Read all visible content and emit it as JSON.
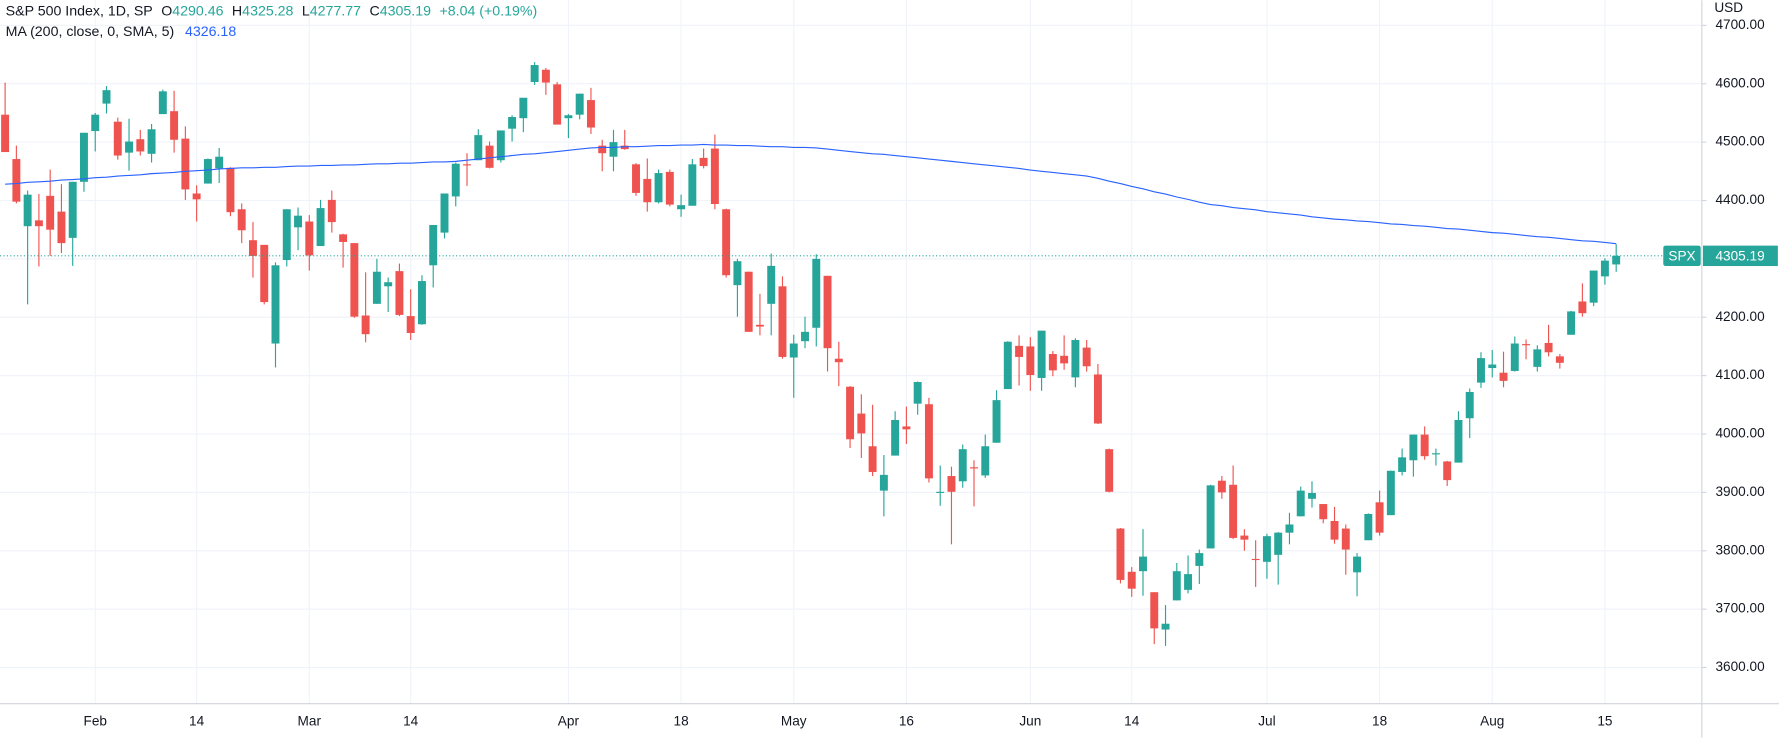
{
  "chart_data": {
    "type": "candlestick",
    "title": "S&P 500 Index, 1D, SP",
    "ohlc_keys": [
      "O",
      "H",
      "L",
      "C"
    ],
    "change": "+8.04 (+0.19%)",
    "currency": "USD",
    "symbol": "SPX",
    "categories": [
      null,
      null,
      null,
      null,
      null,
      null,
      null,
      null,
      "Feb",
      null,
      null,
      null,
      null,
      null,
      null,
      null,
      null,
      "14",
      null,
      null,
      null,
      null,
      null,
      null,
      null,
      null,
      null,
      "Mar",
      null,
      null,
      null,
      null,
      null,
      null,
      null,
      null,
      "14",
      null,
      null,
      null,
      null,
      null,
      null,
      null,
      null,
      null,
      null,
      null,
      null,
      null,
      "Apr",
      null,
      null,
      null,
      null,
      null,
      null,
      null,
      null,
      null,
      "18",
      null,
      null,
      null,
      null,
      null,
      null,
      null,
      null,
      null,
      "May",
      null,
      null,
      null,
      null,
      null,
      null,
      null,
      null,
      null,
      "16",
      null,
      null,
      null,
      null,
      null,
      null,
      null,
      null,
      null,
      null,
      "Jun",
      null,
      null,
      null,
      null,
      null,
      null,
      null,
      null,
      "14",
      null,
      null,
      null,
      null,
      null,
      null,
      null,
      null,
      null,
      null,
      null,
      "Jul",
      null,
      null,
      null,
      null,
      null,
      null,
      null,
      null,
      null,
      "18",
      null,
      null,
      null,
      null,
      null,
      null,
      null,
      null,
      null,
      "Aug",
      null,
      null,
      null,
      null,
      null,
      null,
      null,
      null,
      null,
      "15",
      null
    ],
    "series": [
      {
        "up_color": "#26a69a",
        "down_color": "#ef5350",
        "open": [
          4547,
          4471,
          4356,
          4366,
          4408,
          4381,
          4336,
          4432,
          4519,
          4566,
          4535,
          4482,
          4505,
          4480,
          4548,
          4553,
          4506,
          4412,
          4429,
          4455,
          4456,
          4385,
          4332,
          4324,
          4155,
          4298,
          4354,
          4364,
          4322,
          4401,
          4342,
          4327,
          4203,
          4223,
          4253,
          4279,
          4202,
          4188,
          4289,
          4345,
          4407,
          4462,
          4469,
          4494,
          4469,
          4523,
          4541,
          4603,
          4624,
          4599,
          4541,
          4547,
          4572,
          4494,
          4475,
          4494,
          4462,
          4437,
          4397,
          4449,
          4385,
          4391,
          4473,
          4489,
          4385,
          4255,
          4278,
          4187,
          4223,
          4253,
          4131,
          4159,
          4182,
          4271,
          4129,
          4081,
          4035,
          3979,
          3903,
          3963,
          4013,
          4052,
          4051,
          3900,
          3928,
          3919,
          3943,
          3929,
          3985,
          4077,
          4151,
          4150,
          4096,
          4137,
          4134,
          4097,
          4148,
          4102,
          3974,
          3838,
          3764,
          3765,
          3729,
          3665,
          3715,
          3733,
          3774,
          3804,
          3920,
          3913,
          3826,
          3786,
          3781,
          3793,
          3831,
          3859,
          3889,
          3880,
          3851,
          3838,
          3763,
          3818,
          3883,
          3861,
          3935,
          3955,
          3999,
          3965,
          3953,
          3951,
          4027,
          4088,
          4113,
          4105,
          4108,
          4154,
          4115,
          4156,
          4133,
          4170,
          4227,
          4225,
          4270,
          4290.46
        ],
        "high": [
          4602,
          4494,
          4417,
          4411,
          4453,
          4428,
          4432,
          4516,
          4550,
          4596,
          4542,
          4540,
          4521,
          4531,
          4590,
          4588,
          4527,
          4426,
          4472,
          4490,
          4457,
          4395,
          4363,
          4324,
          4294,
          4385,
          4388,
          4375,
          4401,
          4417,
          4343,
          4327,
          4277,
          4300,
          4268,
          4292,
          4248,
          4272,
          4358,
          4412,
          4465,
          4481,
          4522,
          4501,
          4520,
          4546,
          4575,
          4637,
          4627,
          4603,
          4548,
          4583,
          4593,
          4504,
          4521,
          4521,
          4464,
          4472,
          4453,
          4453,
          4410,
          4471,
          4489,
          4513,
          4386,
          4300,
          4278,
          4240,
          4309,
          4270,
          4170,
          4201,
          4308,
          4271,
          4158,
          4082,
          4068,
          4050,
          3964,
          4039,
          4047,
          4090,
          4062,
          3946,
          3944,
          3982,
          3955,
          3999,
          4075,
          4159,
          4169,
          4166,
          4177,
          4142,
          4169,
          4164,
          4161,
          4120,
          3975,
          3839,
          3772,
          3837,
          3729,
          3707,
          3779,
          3792,
          3802,
          3913,
          3928,
          3946,
          3837,
          3818,
          3829,
          3832,
          3865,
          3910,
          3919,
          3880,
          3875,
          3845,
          3796,
          3864,
          3903,
          3937,
          3975,
          3999,
          4013,
          3975,
          3954,
          4039,
          4078,
          4140,
          4144,
          4141,
          4167,
          4162,
          4152,
          4187,
          4137,
          4211,
          4258,
          4280,
          4301,
          4325.28
        ],
        "low": [
          4483,
          4395,
          4222,
          4287,
          4305,
          4310,
          4288,
          4415,
          4484,
          4549,
          4470,
          4451,
          4477,
          4465,
          4548,
          4482,
          4401,
          4364,
          4429,
          4430,
          4373,
          4327,
          4268,
          4222,
          4114,
          4287,
          4315,
          4280,
          4322,
          4345,
          4285,
          4199,
          4157,
          4223,
          4209,
          4202,
          4161,
          4187,
          4251,
          4335,
          4390,
          4425,
          4469,
          4455,
          4465,
          4501,
          4517,
          4598,
          4581,
          4530,
          4507,
          4539,
          4514,
          4450,
          4450,
          4487,
          4408,
          4381,
          4395,
          4390,
          4372,
          4391,
          4455,
          4385,
          4268,
          4201,
          4175,
          4169,
          4169,
          4129,
          4062,
          4147,
          4150,
          4107,
          4082,
          3976,
          3959,
          3928,
          3859,
          3963,
          3983,
          4033,
          3917,
          3877,
          3811,
          3908,
          3876,
          3925,
          3985,
          4077,
          4083,
          4074,
          4074,
          4099,
          4110,
          4080,
          4107,
          4017,
          3900,
          3744,
          3721,
          3723,
          3640,
          3637,
          3715,
          3727,
          3743,
          3804,
          3889,
          3820,
          3800,
          3738,
          3752,
          3742,
          3811,
          3859,
          3874,
          3847,
          3812,
          3759,
          3722,
          3818,
          3826,
          3861,
          3929,
          3927,
          3956,
          3946,
          3911,
          3951,
          3993,
          4079,
          4097,
          4080,
          4107,
          4128,
          4107,
          4133,
          4112,
          4170,
          4201,
          4219,
          4256,
          4277.77
        ],
        "close": [
          4483,
          4398,
          4410,
          4356,
          4350,
          4327,
          4432,
          4516,
          4547,
          4589,
          4477,
          4501,
          4484,
          4522,
          4587,
          4504,
          4419,
          4402,
          4471,
          4475,
          4380,
          4349,
          4305,
          4226,
          4289,
          4385,
          4374,
          4306,
          4387,
          4363,
          4329,
          4201,
          4171,
          4278,
          4260,
          4204,
          4173,
          4262,
          4358,
          4412,
          4463,
          4461,
          4512,
          4456,
          4520,
          4543,
          4576,
          4632,
          4602,
          4530,
          4546,
          4583,
          4525,
          4481,
          4500,
          4488,
          4413,
          4397,
          4447,
          4393,
          4392,
          4462,
          4459,
          4394,
          4272,
          4296,
          4175,
          4184,
          4288,
          4132,
          4155,
          4175,
          4300,
          4147,
          4123,
          3991,
          4001,
          3935,
          3930,
          4024,
          4008,
          4089,
          3924,
          3901,
          3901,
          3974,
          3941,
          3979,
          4058,
          4158,
          4132,
          4101,
          4177,
          4109,
          4121,
          4161,
          4116,
          4018,
          3901,
          3750,
          3735,
          3790,
          3667,
          3675,
          3765,
          3760,
          3796,
          3912,
          3900,
          3822,
          3819,
          3785,
          3825,
          3831,
          3845,
          3903,
          3899,
          3854,
          3819,
          3802,
          3790,
          3863,
          3831,
          3937,
          3960,
          3999,
          3962,
          3967,
          3921,
          4024,
          4072,
          4130,
          4119,
          4091,
          4155,
          4152,
          4145,
          4140,
          4122,
          4210,
          4207,
          4280,
          4297,
          4305.19
        ]
      }
    ],
    "overlay": {
      "type": "line",
      "name": "MA (200, close, 0, SMA, 5)",
      "color": "#2962ff",
      "values": [
        4428,
        4429,
        4431,
        4432,
        4433,
        4435,
        4436,
        4437,
        4439,
        4440,
        4442,
        4443,
        4444,
        4446,
        4447,
        4448,
        4450,
        4451,
        4452,
        4454,
        4455,
        4456,
        4456,
        4457,
        4457,
        4458,
        4459,
        4459,
        4460,
        4460,
        4461,
        4461,
        4462,
        4463,
        4463,
        4464,
        4464,
        4465,
        4466,
        4466,
        4467,
        4469,
        4471,
        4473,
        4475,
        4477,
        4479,
        4480,
        4482,
        4484,
        4486,
        4488,
        4490,
        4491,
        4491,
        4492,
        4492,
        4493,
        4494,
        4494,
        4495,
        4495,
        4496,
        4495,
        4495,
        4494,
        4494,
        4493,
        4492,
        4492,
        4491,
        4491,
        4490,
        4488,
        4486,
        4484,
        4482,
        4480,
        4479,
        4477,
        4475,
        4473,
        4471,
        4469,
        4467,
        4465,
        4463,
        4461,
        4459,
        4457,
        4455,
        4452,
        4450,
        4448,
        4446,
        4444,
        4442,
        4438,
        4433,
        4429,
        4424,
        4420,
        4415,
        4411,
        4406,
        4402,
        4397,
        4393,
        4391,
        4388,
        4386,
        4384,
        4381,
        4379,
        4377,
        4375,
        4372,
        4370,
        4368,
        4367,
        4365,
        4364,
        4362,
        4360,
        4359,
        4357,
        4356,
        4354,
        4352,
        4351,
        4349,
        4347,
        4345,
        4344,
        4342,
        4340,
        4338,
        4337,
        4335,
        4333,
        4331,
        4330,
        4328,
        4326.18
      ]
    },
    "ylim": [
      3538,
      4743
    ],
    "yticks": [
      {
        "value": 3600,
        "label": "3600.00"
      },
      {
        "value": 3700,
        "label": "3700.00"
      },
      {
        "value": 3800,
        "label": "3800.00"
      },
      {
        "value": 3900,
        "label": "3900.00"
      },
      {
        "value": 4000,
        "label": "4000.00"
      },
      {
        "value": 4100,
        "label": "4100.00"
      },
      {
        "value": 4200,
        "label": "4200.00"
      },
      {
        "value": 4300,
        "label": "4300.00"
      },
      {
        "value": 4400,
        "label": "4400.00"
      },
      {
        "value": 4500,
        "label": "4500.00"
      },
      {
        "value": 4600,
        "label": "4600.00"
      },
      {
        "value": 4700,
        "label": "4700.00"
      }
    ],
    "grid": true
  }
}
